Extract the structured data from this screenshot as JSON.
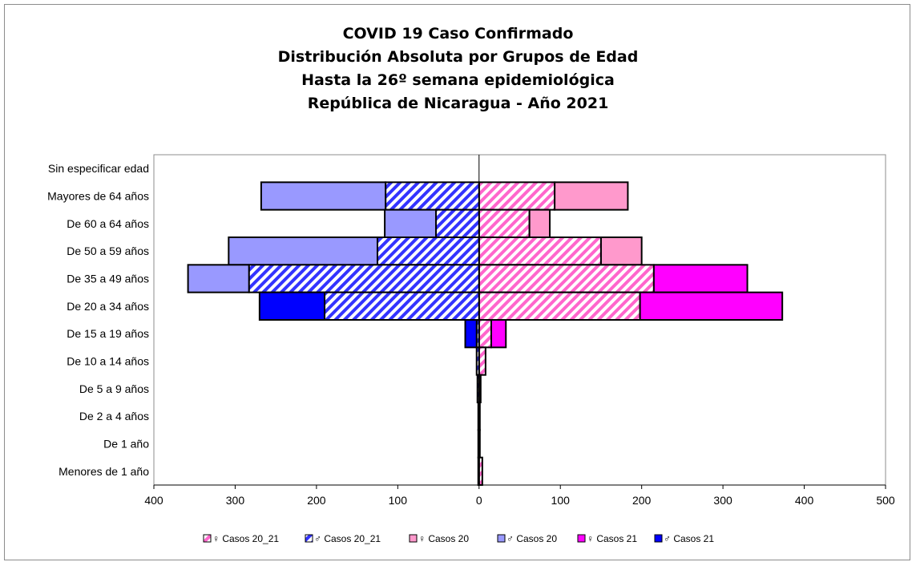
{
  "chart_data": {
    "type": "bar",
    "orientation": "horizontal-pyramid",
    "title": [
      "COVID 19 Caso Confirmado",
      "Distribución Absoluta por Grupos de Edad",
      "Hasta la 26º semana epidemiológica",
      "República de Nicaragua - Año 2021"
    ],
    "categories": [
      "Sin especificar edad",
      "Mayores de 64 años",
      "De 60 a 64 años",
      "De 50 a 59 años",
      "De 35 a 49 años",
      "De 20 a 34 años",
      "De 15 a 19 años",
      "De 10 a 14 años",
      "De 5 a 9 años",
      "De 2 a 4 años",
      "De 1 año",
      "Menores de 1 año"
    ],
    "xlim": [
      -400,
      500
    ],
    "x_ticks": [
      -400,
      -300,
      -200,
      -100,
      0,
      100,
      200,
      300,
      400,
      500
    ],
    "x_tick_labels": [
      "400",
      "300",
      "200",
      "100",
      "0",
      "100",
      "200",
      "300",
      "400",
      "500"
    ],
    "series": [
      {
        "name": "♀ Casos 20_21",
        "side": "female",
        "color": "#ff66cc",
        "pattern": "hatch",
        "values": [
          0,
          93,
          62,
          150,
          215,
          198,
          15,
          8,
          2,
          1,
          1,
          4
        ]
      },
      {
        "name": "♂ Casos 20_21",
        "side": "male",
        "color": "#3333ff",
        "pattern": "hatch",
        "values": [
          0,
          115,
          53,
          125,
          283,
          190,
          3,
          3,
          2,
          1,
          1,
          1
        ]
      },
      {
        "name": "♀ Casos 20",
        "side": "female",
        "color": "#ff99cc",
        "pattern": "solid",
        "values": [
          0,
          90,
          25,
          50,
          0,
          0,
          0,
          0,
          0,
          0,
          0,
          0
        ]
      },
      {
        "name": "♂ Casos 20",
        "side": "male",
        "color": "#9999ff",
        "pattern": "solid",
        "values": [
          0,
          153,
          63,
          183,
          75,
          0,
          0,
          0,
          0,
          0,
          0,
          0
        ]
      },
      {
        "name": "♀ Casos 21",
        "side": "female",
        "color": "#ff00ff",
        "pattern": "solid",
        "values": [
          0,
          0,
          0,
          0,
          115,
          175,
          18,
          0,
          0,
          0,
          0,
          0
        ]
      },
      {
        "name": "♂ Casos 21",
        "side": "male",
        "color": "#0000ff",
        "pattern": "solid",
        "values": [
          0,
          0,
          0,
          0,
          0,
          80,
          14,
          0,
          0,
          0,
          0,
          0
        ]
      }
    ],
    "grid": false,
    "legend_position": "bottom"
  }
}
